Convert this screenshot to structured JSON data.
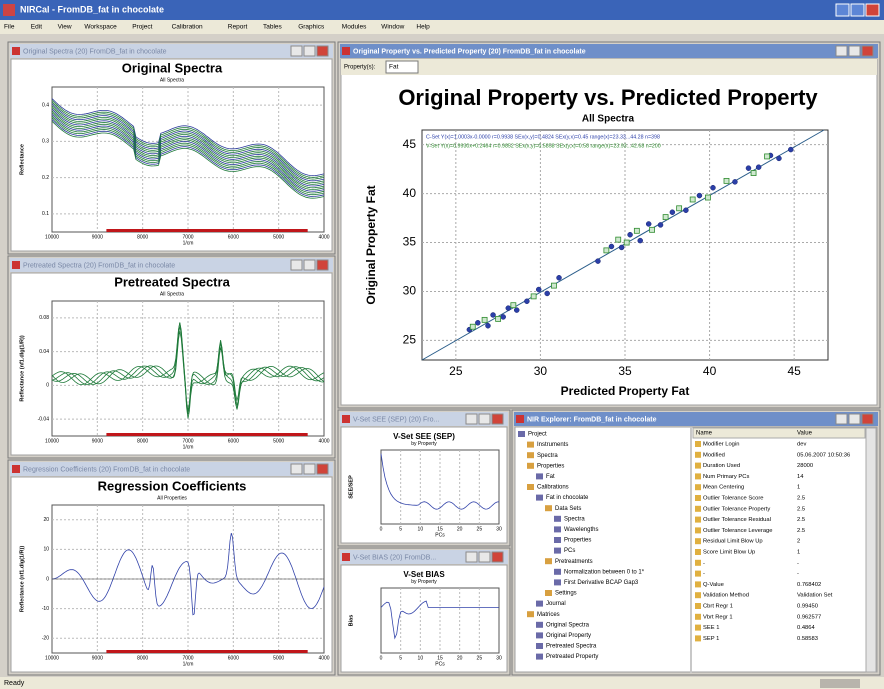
{
  "app": {
    "title": "NIRCal - FromDB_fat in chocolate",
    "menu": [
      "File",
      "Edit",
      "View",
      "Workspace",
      "Project",
      "Calibration",
      "Report",
      "Tables",
      "Graphics",
      "Modules",
      "Window",
      "Help"
    ],
    "status": "Ready"
  },
  "windows": {
    "original_spectra": {
      "window_title": "Original Spectra (20) FromDB_fat in chocolate",
      "title": "Original Spectra",
      "subtitle": "All Spectra",
      "y_label": "Reflectance",
      "x_label": "1/cm",
      "xticks": [
        "10000",
        "9000",
        "8000",
        "7000",
        "6000",
        "5000",
        "4000"
      ],
      "yticks": [
        "0.4",
        "0.3",
        "0.2",
        "0.1"
      ]
    },
    "pretreated_spectra": {
      "window_title": "Pretreated Spectra (20) FromDB_fat in chocolate",
      "title": "Pretreated Spectra",
      "subtitle": "All Spectra",
      "y_label": "Reflectance (nf1.dlg(1/R))",
      "x_label": "1/cm",
      "xticks": [
        "10000",
        "9000",
        "8000",
        "7000",
        "6000",
        "5000",
        "4000"
      ],
      "yticks": [
        "0.08",
        "0.04",
        "0",
        "-0.04"
      ]
    },
    "regression_coefficients": {
      "window_title": "Regression Coefficients (20) FromDB_fat in chocolate",
      "title": "Regression Coefficients",
      "subtitle": "All Properties",
      "y_label": "Reflectance (nf1.dlg(1/R))",
      "x_label": "1/cm",
      "xticks": [
        "10000",
        "9000",
        "8000",
        "7000",
        "6000",
        "5000",
        "4000"
      ],
      "yticks": [
        "20",
        "10",
        "0",
        "-10",
        "-20"
      ]
    },
    "see": {
      "window_title": "V-Set SEE (SEP) (20) Fro...",
      "title": "V-Set SEE (SEP)",
      "subtitle": "by Property",
      "y_label": "SEE/SEP",
      "x_label": "PCs",
      "xticks": [
        "0",
        "5",
        "10",
        "15",
        "20",
        "25",
        "30"
      ],
      "yticks": []
    },
    "bias": {
      "window_title": "V-Set BIAS (20) FromDB...",
      "title": "V-Set BIAS",
      "subtitle": "by Property",
      "y_label": "Bias",
      "x_label": "PCs",
      "xticks": [
        "0",
        "5",
        "10",
        "15",
        "20",
        "25",
        "30"
      ],
      "yticks": []
    },
    "main": {
      "window_title": "Original Property vs. Predicted Property (20) FromDB_fat in chocolate",
      "property_label": "Property(s):",
      "property_value": "Fat"
    },
    "explorer": {
      "window_title": "NIR Explorer: FromDB_fat in chocolate",
      "tree": [
        {
          "label": "Project",
          "level": 0
        },
        {
          "label": "Instruments",
          "level": 1
        },
        {
          "label": "Spectra",
          "level": 1
        },
        {
          "label": "Properties",
          "level": 1
        },
        {
          "label": "Fat",
          "level": 2
        },
        {
          "label": "Calibrations",
          "level": 1
        },
        {
          "label": "Fat in chocolate",
          "level": 2
        },
        {
          "label": "Data Sets",
          "level": 3
        },
        {
          "label": "Spectra",
          "level": 4
        },
        {
          "label": "Wavelengths",
          "level": 4
        },
        {
          "label": "Properties",
          "level": 4
        },
        {
          "label": "PCs",
          "level": 4
        },
        {
          "label": "Pretreatments",
          "level": 3
        },
        {
          "label": "Normalization between 0 to 1*",
          "level": 4
        },
        {
          "label": "First Derivative BCAP Gap3",
          "level": 4
        },
        {
          "label": "Settings",
          "level": 3
        },
        {
          "label": "Journal",
          "level": 2
        },
        {
          "label": "Matrices",
          "level": 1
        },
        {
          "label": "Original Spectra",
          "level": 2
        },
        {
          "label": "Original Property",
          "level": 2
        },
        {
          "label": "Pretreated Spectra",
          "level": 2
        },
        {
          "label": "Pretreated Property",
          "level": 2
        }
      ],
      "table": {
        "header": [
          "Name",
          "Value"
        ],
        "rows": [
          [
            "Modifier Login",
            "dev"
          ],
          [
            "Modified",
            "05.06.2007 10:50:36"
          ],
          [
            "Duration Used",
            "28000"
          ],
          [
            "Num Primary PCs",
            "14"
          ],
          [
            "Mean Centering",
            "1"
          ],
          [
            "Outlier Tolerance Score",
            "2.5"
          ],
          [
            "Outlier Tolerance Property",
            "2.5"
          ],
          [
            "Outlier Tolerance Residual",
            "2.5"
          ],
          [
            "Outlier Tolerance Leverage",
            "2.5"
          ],
          [
            "Residual Limit Blow Up",
            "2"
          ],
          [
            "Score Limit Blow Up",
            "1"
          ],
          [
            "-",
            "-"
          ],
          [
            "-",
            "-"
          ],
          [
            "Q-Value",
            "0.768402"
          ],
          [
            "Validation Method",
            "Validation Set"
          ],
          [
            "Cbrt Regr 1",
            "0.99450"
          ],
          [
            "Vbrt Regr 1",
            "0.962577"
          ],
          [
            "SEE 1",
            "0.4864"
          ],
          [
            "SEP 1",
            "0.58583"
          ]
        ]
      }
    }
  },
  "chart_data": {
    "type": "scatter",
    "title": "Original Property vs. Predicted Property",
    "subtitle": "All Spectra",
    "x_label": "Predicted Property Fat",
    "y_label": "Original Property Fat",
    "xlim": [
      23,
      47
    ],
    "ylim": [
      23,
      46.5
    ],
    "xticks": [
      25,
      30,
      35,
      40,
      45
    ],
    "yticks": [
      25,
      30,
      35,
      40,
      45
    ],
    "grid": true,
    "series": [
      {
        "name": "C-Set Y(x)=1.0003x-0.0000 r=0.9938 SEx(x,y)=0.4824 SEx(y,x)=0.45 range(x)=23.33...44.28 n=398",
        "color": "#2b3fa8",
        "marker": "circle",
        "x": [
          25.8,
          26.3,
          26.9,
          27.2,
          27.8,
          28.1,
          28.6,
          29.2,
          29.9,
          30.4,
          31.1,
          33.4,
          34.2,
          34.8,
          35.3,
          35.9,
          36.4,
          37.1,
          37.8,
          38.6,
          39.4,
          40.2,
          41.5,
          42.3,
          42.9,
          43.6,
          44.1,
          44.8
        ],
        "values": [
          26.1,
          26.8,
          26.5,
          27.6,
          27.4,
          28.3,
          28.1,
          29.0,
          30.2,
          29.8,
          31.4,
          33.1,
          34.6,
          34.5,
          35.8,
          35.2,
          36.9,
          36.8,
          38.1,
          38.3,
          39.8,
          40.6,
          41.2,
          42.6,
          42.7,
          43.9,
          43.6,
          44.5
        ]
      },
      {
        "name": "V-Set Y(x)=0.9930x+0.2464 r=0.9852 SEx(x,y)=0.5858 SEx(y,x)=0.58 range(x)=23.93...42.68 n=200",
        "color": "#2e8b2e",
        "marker": "square",
        "x": [
          26.0,
          26.7,
          27.5,
          28.4,
          29.6,
          30.8,
          33.9,
          34.6,
          35.1,
          35.7,
          36.6,
          37.4,
          38.2,
          39.0,
          39.9,
          41.0,
          42.6,
          43.4
        ],
        "values": [
          26.4,
          27.1,
          27.2,
          28.6,
          29.5,
          30.6,
          34.2,
          35.3,
          35.0,
          36.2,
          36.3,
          37.6,
          38.5,
          39.4,
          39.6,
          41.3,
          42.1,
          43.8
        ]
      }
    ]
  }
}
